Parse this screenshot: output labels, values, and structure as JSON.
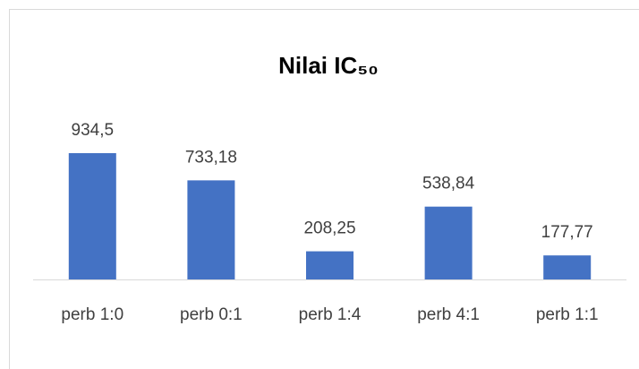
{
  "chart_data": {
    "type": "bar",
    "title": "Nilai IC₅₀",
    "categories": [
      "perb 1:0",
      "perb 0:1",
      "perb 1:4",
      "perb 4:1",
      "perb 1:1"
    ],
    "values": [
      934.5,
      733.18,
      208.25,
      538.84,
      177.77
    ],
    "value_labels": [
      "934,5",
      "733,18",
      "208,25",
      "538,84",
      "177,77"
    ],
    "color": "#4472c4"
  }
}
